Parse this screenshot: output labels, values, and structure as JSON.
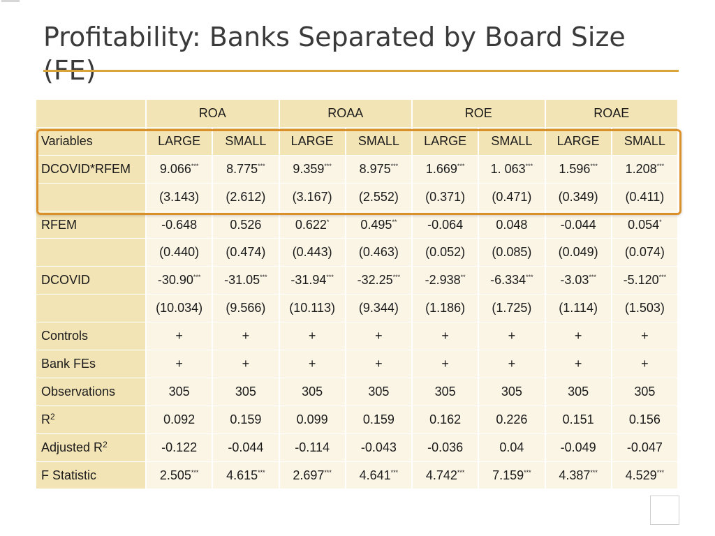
{
  "slide": {
    "title": "Profitability: Banks Separated by Board Size (FE)"
  },
  "table": {
    "groups": [
      "ROA",
      "ROAA",
      "ROE",
      "ROAE"
    ],
    "rows": [
      {
        "label": "Variables",
        "values": [
          {
            "v": "LARGE",
            "s": ""
          },
          {
            "v": "SMALL",
            "s": ""
          },
          {
            "v": "LARGE",
            "s": ""
          },
          {
            "v": "SMALL",
            "s": ""
          },
          {
            "v": "LARGE",
            "s": ""
          },
          {
            "v": "SMALL",
            "s": ""
          },
          {
            "v": "LARGE",
            "s": ""
          },
          {
            "v": "SMALL",
            "s": ""
          }
        ]
      },
      {
        "label": "DCOVID*RFEM",
        "values": [
          {
            "v": "9.066",
            "s": "***"
          },
          {
            "v": "8.775",
            "s": "***"
          },
          {
            "v": "9.359",
            "s": "***"
          },
          {
            "v": "8.975",
            "s": "***"
          },
          {
            "v": "1.669",
            "s": "***"
          },
          {
            "v": "1. 063",
            "s": "***"
          },
          {
            "v": "1.596",
            "s": "***"
          },
          {
            "v": "1.208",
            "s": "***"
          }
        ]
      },
      {
        "label": "",
        "values": [
          {
            "v": "(3.143)",
            "s": ""
          },
          {
            "v": "(2.612)",
            "s": ""
          },
          {
            "v": "(3.167)",
            "s": ""
          },
          {
            "v": "(2.552)",
            "s": ""
          },
          {
            "v": "(0.371)",
            "s": ""
          },
          {
            "v": "(0.471)",
            "s": ""
          },
          {
            "v": "(0.349)",
            "s": ""
          },
          {
            "v": "(0.411)",
            "s": ""
          }
        ]
      },
      {
        "label": "RFEM",
        "values": [
          {
            "v": "-0.648",
            "s": ""
          },
          {
            "v": "0.526",
            "s": ""
          },
          {
            "v": "0.622",
            "s": "*"
          },
          {
            "v": "0.495",
            "s": "**"
          },
          {
            "v": "-0.064",
            "s": ""
          },
          {
            "v": "0.048",
            "s": ""
          },
          {
            "v": "-0.044",
            "s": ""
          },
          {
            "v": "0.054",
            "s": "*"
          }
        ]
      },
      {
        "label": "",
        "values": [
          {
            "v": "(0.440)",
            "s": ""
          },
          {
            "v": "(0.474)",
            "s": ""
          },
          {
            "v": "(0.443)",
            "s": ""
          },
          {
            "v": "(0.463)",
            "s": ""
          },
          {
            "v": "(0.052)",
            "s": ""
          },
          {
            "v": "(0.085)",
            "s": ""
          },
          {
            "v": "(0.049)",
            "s": ""
          },
          {
            "v": "(0.074)",
            "s": ""
          }
        ]
      },
      {
        "label": "DCOVID",
        "values": [
          {
            "v": "-30.90",
            "s": "***"
          },
          {
            "v": "-31.05",
            "s": "***"
          },
          {
            "v": "-31.94",
            "s": "***"
          },
          {
            "v": "-32.25",
            "s": "***"
          },
          {
            "v": "-2.938",
            "s": "**"
          },
          {
            "v": "-6.334",
            "s": "***"
          },
          {
            "v": "-3.03",
            "s": "***"
          },
          {
            "v": "-5.120",
            "s": "***"
          }
        ]
      },
      {
        "label": "",
        "values": [
          {
            "v": "(10.034)",
            "s": ""
          },
          {
            "v": "(9.566)",
            "s": ""
          },
          {
            "v": "(10.113)",
            "s": ""
          },
          {
            "v": "(9.344)",
            "s": ""
          },
          {
            "v": "(1.186)",
            "s": ""
          },
          {
            "v": "(1.725)",
            "s": ""
          },
          {
            "v": "(1.114)",
            "s": ""
          },
          {
            "v": "(1.503)",
            "s": ""
          }
        ]
      },
      {
        "label": "Controls",
        "values": [
          {
            "v": "+",
            "s": ""
          },
          {
            "v": "+",
            "s": ""
          },
          {
            "v": "+",
            "s": ""
          },
          {
            "v": "+",
            "s": ""
          },
          {
            "v": "+",
            "s": ""
          },
          {
            "v": "+",
            "s": ""
          },
          {
            "v": "+",
            "s": ""
          },
          {
            "v": "+",
            "s": ""
          }
        ]
      },
      {
        "label": "Bank FEs",
        "values": [
          {
            "v": "+",
            "s": ""
          },
          {
            "v": "+",
            "s": ""
          },
          {
            "v": "+",
            "s": ""
          },
          {
            "v": "+",
            "s": ""
          },
          {
            "v": "+",
            "s": ""
          },
          {
            "v": "+",
            "s": ""
          },
          {
            "v": "+",
            "s": ""
          },
          {
            "v": "+",
            "s": ""
          }
        ]
      },
      {
        "label": "Observations",
        "values": [
          {
            "v": "305",
            "s": ""
          },
          {
            "v": "305",
            "s": ""
          },
          {
            "v": "305",
            "s": ""
          },
          {
            "v": "305",
            "s": ""
          },
          {
            "v": "305",
            "s": ""
          },
          {
            "v": "305",
            "s": ""
          },
          {
            "v": "305",
            "s": ""
          },
          {
            "v": "305",
            "s": ""
          }
        ]
      },
      {
        "label": "R",
        "labelSup": "2",
        "values": [
          {
            "v": "0.092",
            "s": ""
          },
          {
            "v": "0.159",
            "s": ""
          },
          {
            "v": "0.099",
            "s": ""
          },
          {
            "v": "0.159",
            "s": ""
          },
          {
            "v": "0.162",
            "s": ""
          },
          {
            "v": "0.226",
            "s": ""
          },
          {
            "v": "0.151",
            "s": ""
          },
          {
            "v": "0.156",
            "s": ""
          }
        ]
      },
      {
        "label": "Adjusted R",
        "labelSup": "2",
        "values": [
          {
            "v": "-0.122",
            "s": ""
          },
          {
            "v": "-0.044",
            "s": ""
          },
          {
            "v": "-0.114",
            "s": ""
          },
          {
            "v": "-0.043",
            "s": ""
          },
          {
            "v": "-0.036",
            "s": ""
          },
          {
            "v": "0.04",
            "s": ""
          },
          {
            "v": "-0.049",
            "s": ""
          },
          {
            "v": "-0.047",
            "s": ""
          }
        ]
      },
      {
        "label": "F Statistic",
        "values": [
          {
            "v": "2.505",
            "s": "***"
          },
          {
            "v": "4.615",
            "s": "***"
          },
          {
            "v": "2.697",
            "s": "***"
          },
          {
            "v": "4.641",
            "s": "***"
          },
          {
            "v": "4.742",
            "s": "***"
          },
          {
            "v": "7.159",
            "s": "***"
          },
          {
            "v": "4.387",
            "s": "***"
          },
          {
            "v": "4.529",
            "s": "***"
          }
        ]
      }
    ]
  },
  "colors": {
    "header_fill": "#f3e4b5",
    "cell_fill": "#fbf5e6",
    "accent_rule": "#d9a53a",
    "highlight_border": "#d98f2a"
  }
}
